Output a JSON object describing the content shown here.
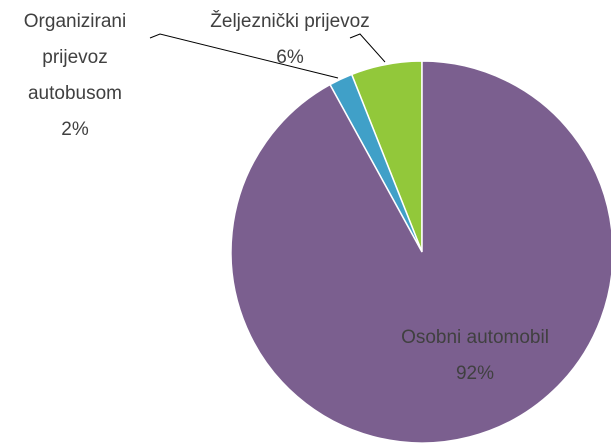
{
  "chart_data": {
    "type": "pie",
    "categories": [
      "Osobni automobil",
      "Organizirani prijevoz autobusom",
      "Željeznički prijevoz"
    ],
    "values": [
      92,
      2,
      6
    ],
    "value_labels": [
      "92%",
      "2%",
      "6%"
    ],
    "colors": [
      "#7b5f8f",
      "#40a0c8",
      "#92c83a"
    ]
  }
}
